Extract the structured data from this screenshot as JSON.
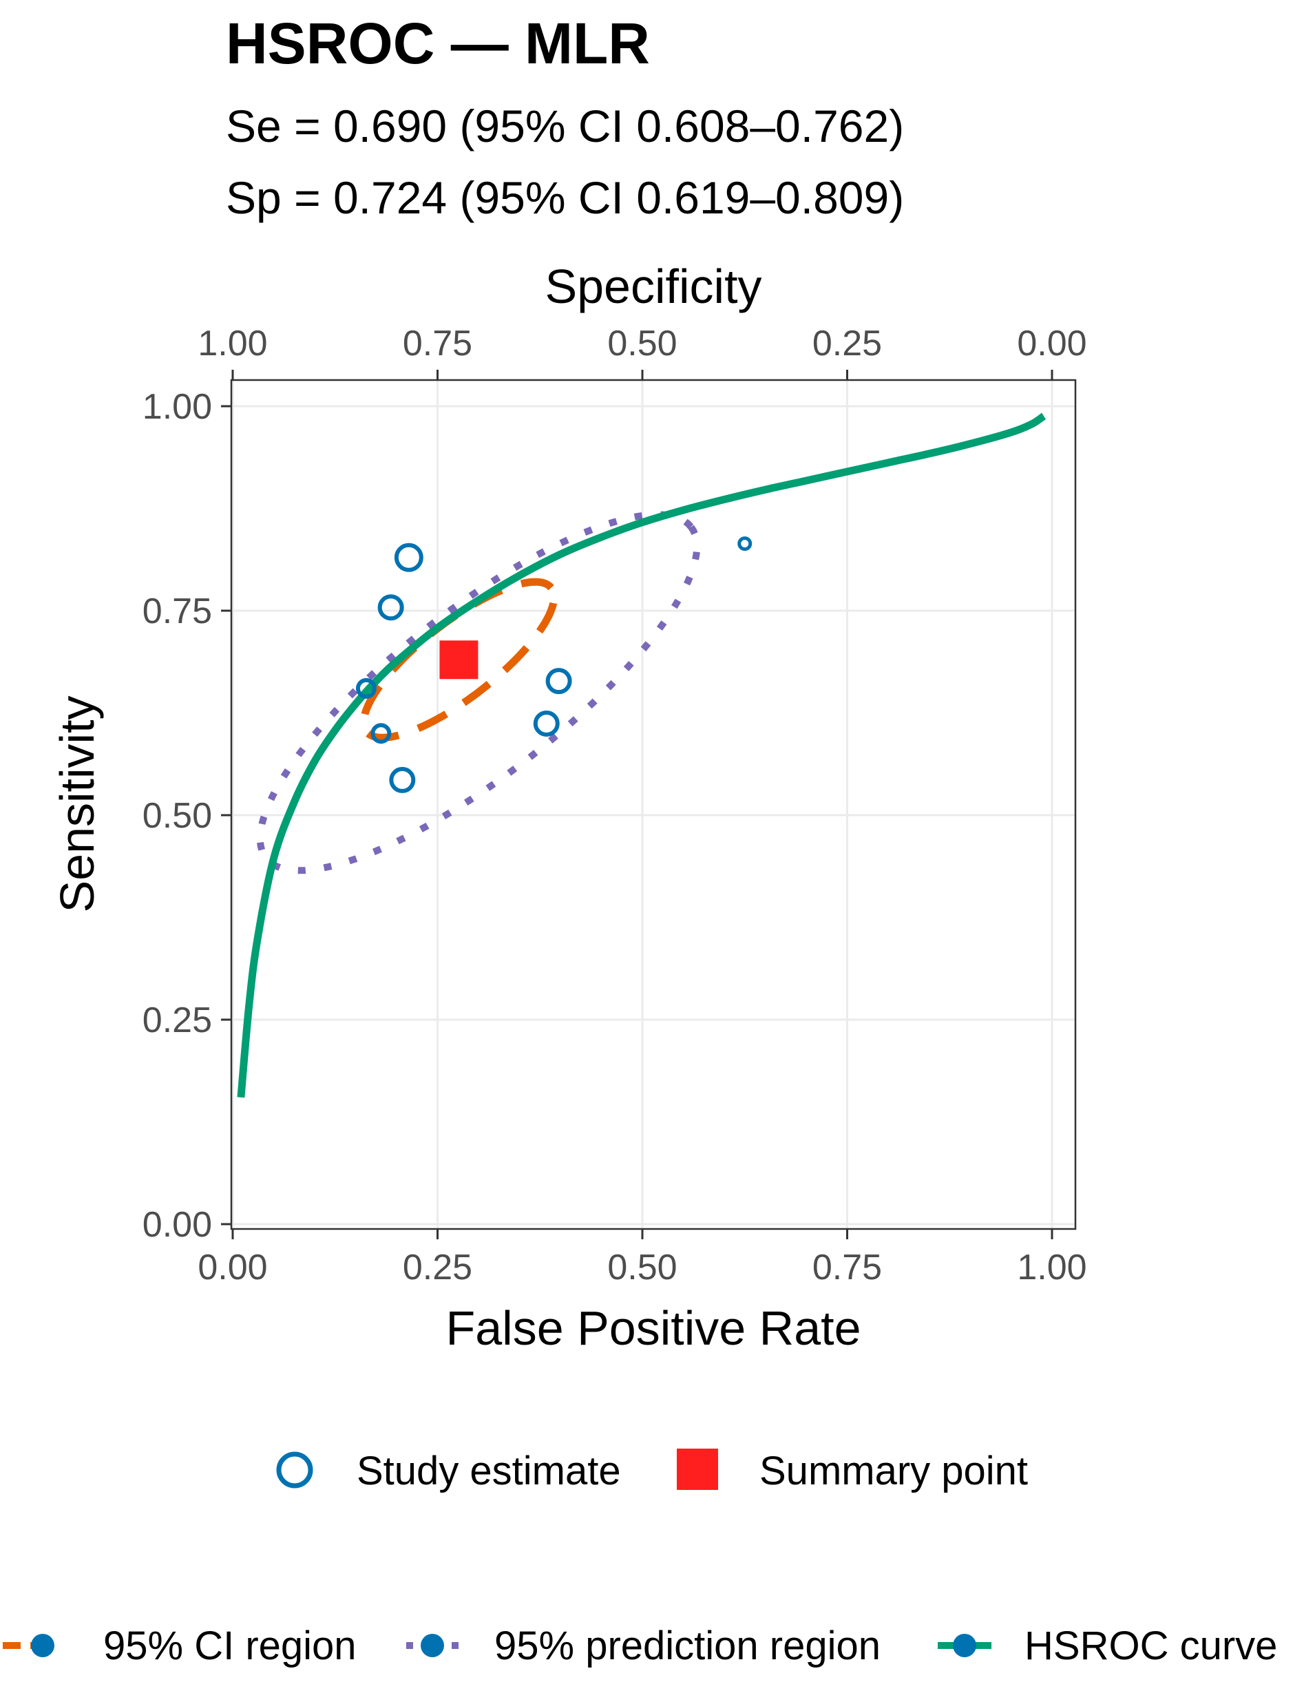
{
  "chart_data": {
    "type": "scatter",
    "title": "HSROC — MLR",
    "subtitle_lines": [
      "Se = 0.690 (95% CI 0.608–0.762)",
      "Sp = 0.724 (95% CI 0.619–0.809)"
    ],
    "xlabel": "False Positive Rate",
    "ylabel": "Sensitivity",
    "x2label": "Specificity",
    "xlim": [
      0,
      1
    ],
    "ylim": [
      0,
      1
    ],
    "x_ticks": [
      "0.00",
      "0.25",
      "0.50",
      "0.75",
      "1.00"
    ],
    "y_ticks": [
      "0.00",
      "0.25",
      "0.50",
      "0.75",
      "1.00"
    ],
    "x2_ticks": [
      "1.00",
      "0.75",
      "0.50",
      "0.25",
      "0.00"
    ],
    "grid": true,
    "series": [
      {
        "name": "Study estimate",
        "kind": "points",
        "color": "#0072B2",
        "points": [
          {
            "fpr": 0.215,
            "sens": 0.815,
            "size": "large"
          },
          {
            "fpr": 0.193,
            "sens": 0.754,
            "size": "medium"
          },
          {
            "fpr": 0.163,
            "sens": 0.655,
            "size": "small"
          },
          {
            "fpr": 0.181,
            "sens": 0.6,
            "size": "small"
          },
          {
            "fpr": 0.207,
            "sens": 0.543,
            "size": "medium"
          },
          {
            "fpr": 0.398,
            "sens": 0.664,
            "size": "medium"
          },
          {
            "fpr": 0.383,
            "sens": 0.612,
            "size": "medium"
          },
          {
            "fpr": 0.625,
            "sens": 0.832,
            "size": "tiny"
          }
        ]
      },
      {
        "name": "Summary point",
        "kind": "summary",
        "color": "#FF1F1F",
        "fpr": 0.276,
        "sens": 0.69
      },
      {
        "name": "95% CI region",
        "kind": "ellipse",
        "color": "#E66100",
        "style": "dashed",
        "center": [
          0.276,
          0.69
        ],
        "semi_axis_1": 0.143,
        "semi_axis_2": 0.046,
        "angle_deg": 38
      },
      {
        "name": "95% prediction region",
        "kind": "ellipse",
        "color": "#7A68B8",
        "style": "dotted",
        "center": [
          0.3,
          0.65
        ],
        "semi_axis_1": 0.329,
        "semi_axis_2": 0.101,
        "angle_deg": 38
      },
      {
        "name": "HSROC curve",
        "kind": "curve",
        "color": "#009E73",
        "x": [
          0.01,
          0.02,
          0.03,
          0.05,
          0.075,
          0.1,
          0.125,
          0.15,
          0.175,
          0.2,
          0.25,
          0.3,
          0.35,
          0.4,
          0.45,
          0.5,
          0.55,
          0.6,
          0.65,
          0.7,
          0.75,
          0.8,
          0.85,
          0.9,
          0.95,
          0.975,
          0.99
        ],
        "y": [
          0.155,
          0.268,
          0.347,
          0.447,
          0.516,
          0.566,
          0.604,
          0.636,
          0.664,
          0.688,
          0.729,
          0.763,
          0.793,
          0.819,
          0.84,
          0.858,
          0.873,
          0.886,
          0.898,
          0.909,
          0.92,
          0.931,
          0.942,
          0.954,
          0.968,
          0.978,
          0.988
        ]
      }
    ],
    "legend_position": "bottom"
  }
}
